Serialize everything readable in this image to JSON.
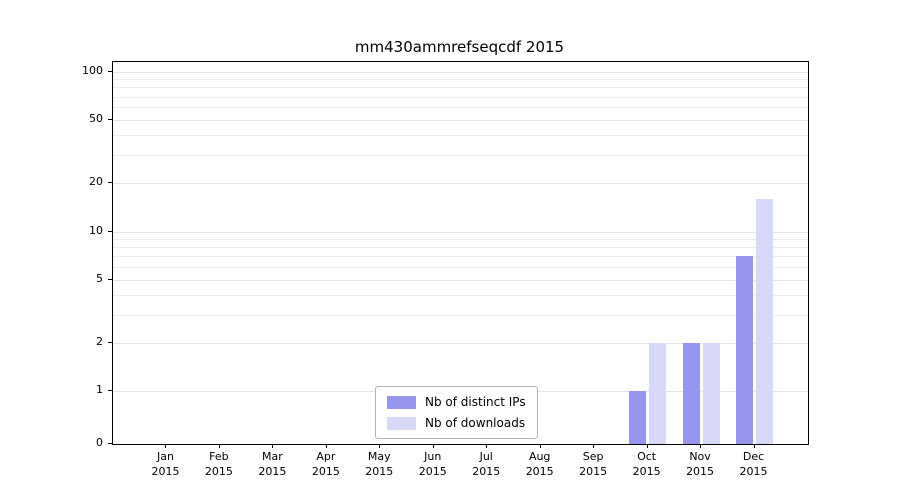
{
  "chart_data": {
    "type": "bar",
    "title": "mm430ammrefseqcdf 2015",
    "categories": [
      "Jan",
      "Feb",
      "Mar",
      "Apr",
      "May",
      "Jun",
      "Jul",
      "Aug",
      "Sep",
      "Oct",
      "Nov",
      "Dec"
    ],
    "x_year": "2015",
    "series": [
      {
        "name": "Nb of distinct IPs",
        "color": "#9696f0",
        "values": [
          0,
          0,
          0,
          0,
          0,
          0,
          0,
          0,
          0,
          1,
          2,
          7
        ]
      },
      {
        "name": "Nb of downloads",
        "color": "#d8d8f8",
        "values": [
          0,
          0,
          0,
          0,
          0,
          0,
          0,
          0,
          0,
          2,
          2,
          16
        ]
      }
    ],
    "yticks": [
      0,
      1,
      2,
      5,
      10,
      20,
      50,
      100
    ],
    "ylim": [
      0,
      100
    ],
    "yscale": "symlog",
    "grid": "horizontal",
    "legend_position": "bottom-center"
  }
}
